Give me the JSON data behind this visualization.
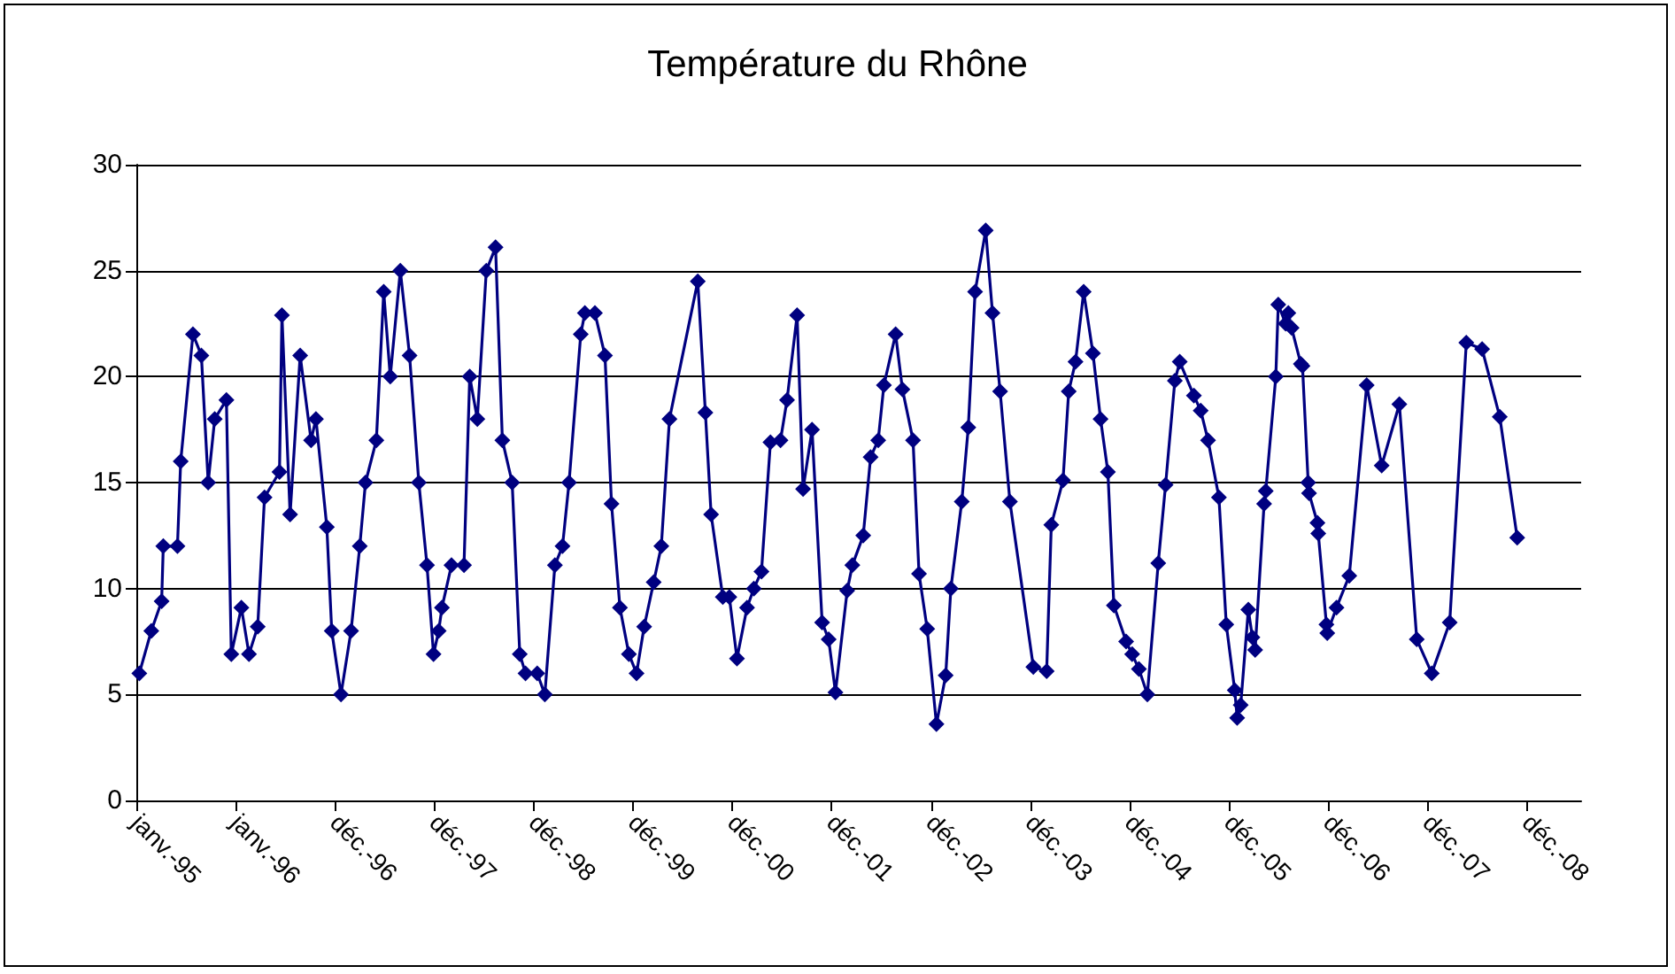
{
  "chart_data": {
    "type": "line",
    "title": "Température du Rhône",
    "color": "#000080",
    "marker": "diamond",
    "line_style": "solid",
    "grid": "y",
    "xlim": [
      "1995-01-01",
      "2009-07-15"
    ],
    "xticks": [
      {
        "value": "1995-01-01",
        "label": "janv.-95"
      },
      {
        "value": "1996-01-01",
        "label": "janv.-96"
      },
      {
        "value": "1996-12-31",
        "label": "déc.-96"
      },
      {
        "value": "1997-12-31",
        "label": "déc.-97"
      },
      {
        "value": "1998-12-31",
        "label": "déc.-98"
      },
      {
        "value": "1999-12-31",
        "label": "déc.-99"
      },
      {
        "value": "2000-12-30",
        "label": "déc.-00"
      },
      {
        "value": "2001-12-30",
        "label": "déc.-01"
      },
      {
        "value": "2002-12-30",
        "label": "déc.-02"
      },
      {
        "value": "2003-12-30",
        "label": "déc.-03"
      },
      {
        "value": "2004-12-29",
        "label": "déc.-04"
      },
      {
        "value": "2005-12-29",
        "label": "déc.-05"
      },
      {
        "value": "2006-12-29",
        "label": "déc.-06"
      },
      {
        "value": "2007-12-29",
        "label": "déc.-07"
      },
      {
        "value": "2008-12-28",
        "label": "déc.-08"
      }
    ],
    "ylim": [
      0,
      30
    ],
    "yticks": [
      0,
      5,
      10,
      15,
      20,
      25,
      30
    ],
    "x": [
      "1995-01-12",
      "1995-02-25",
      "1995-04-04",
      "1995-04-10",
      "1995-06-01",
      "1995-06-13",
      "1995-07-28",
      "1995-08-28",
      "1995-09-22",
      "1995-10-16",
      "1995-11-28",
      "1995-12-16",
      "1996-01-22",
      "1996-02-19",
      "1996-03-22",
      "1996-04-16",
      "1996-06-10",
      "1996-06-19",
      "1996-07-19",
      "1996-08-25",
      "1996-10-04",
      "1996-10-22",
      "1996-12-01",
      "1996-12-19",
      "1997-01-22",
      "1997-02-28",
      "1997-04-01",
      "1997-04-22",
      "1997-06-01",
      "1997-06-28",
      "1997-07-22",
      "1997-08-28",
      "1997-10-01",
      "1997-11-04",
      "1997-12-04",
      "1997-12-28",
      "1998-01-16",
      "1998-01-28",
      "1998-03-04",
      "1998-04-19",
      "1998-05-10",
      "1998-06-07",
      "1998-07-10",
      "1998-08-13",
      "1998-09-07",
      "1998-10-13",
      "1998-11-10",
      "1998-12-01",
      "1999-01-13",
      "1999-02-10",
      "1999-03-19",
      "1999-04-16",
      "1999-05-10",
      "1999-06-22",
      "1999-07-07",
      "1999-08-13",
      "1999-09-19",
      "1999-10-13",
      "1999-11-13",
      "1999-12-16",
      "2000-01-13",
      "2000-02-10",
      "2000-03-16",
      "2000-04-13",
      "2000-05-13",
      "2000-08-25",
      "2000-09-22",
      "2000-10-13",
      "2000-11-25",
      "2000-12-19",
      "2001-01-16",
      "2001-02-22",
      "2001-03-19",
      "2001-04-16",
      "2001-05-19",
      "2001-06-25",
      "2001-07-19",
      "2001-08-25",
      "2001-09-16",
      "2001-10-19",
      "2001-11-25",
      "2001-12-19",
      "2002-01-13",
      "2002-02-25",
      "2002-03-16",
      "2002-04-25",
      "2002-05-22",
      "2002-06-19",
      "2002-07-10",
      "2002-08-22",
      "2002-09-16",
      "2002-10-25",
      "2002-11-16",
      "2002-12-16",
      "2003-01-19",
      "2003-02-22",
      "2003-03-13",
      "2003-04-22",
      "2003-05-16",
      "2003-06-10",
      "2003-07-19",
      "2003-08-13",
      "2003-09-10",
      "2003-10-16",
      "2004-01-10",
      "2004-02-28",
      "2004-03-16",
      "2004-04-28",
      "2004-05-19",
      "2004-06-13",
      "2004-07-13",
      "2004-08-16",
      "2004-09-13",
      "2004-10-10",
      "2004-11-01",
      "2004-12-16",
      "2005-01-07",
      "2005-02-01",
      "2005-03-04",
      "2005-04-13",
      "2005-05-10",
      "2005-06-13",
      "2005-07-01",
      "2005-08-22",
      "2005-09-16",
      "2005-10-13",
      "2005-11-22",
      "2005-12-19",
      "2006-01-19",
      "2006-01-28",
      "2006-02-10",
      "2006-03-10",
      "2006-03-25",
      "2006-04-04",
      "2006-05-07",
      "2006-05-13",
      "2006-06-19",
      "2006-06-28",
      "2006-07-25",
      "2006-08-04",
      "2006-08-16",
      "2006-09-19",
      "2006-09-25",
      "2006-10-16",
      "2006-10-19",
      "2006-11-19",
      "2006-11-22",
      "2006-12-22",
      "2006-12-25",
      "2007-01-28",
      "2007-03-16",
      "2007-05-19",
      "2007-07-13",
      "2007-09-16",
      "2007-11-19",
      "2008-01-13",
      "2008-03-19",
      "2008-05-19",
      "2008-07-16",
      "2008-09-19",
      "2008-11-22"
    ],
    "values": [
      6,
      8,
      9.4,
      12,
      12,
      16,
      22,
      21,
      15,
      18,
      18.9,
      6.9,
      9.1,
      6.9,
      8.2,
      14.3,
      15.5,
      22.9,
      13.5,
      21,
      17,
      18,
      12.9,
      8,
      5,
      8,
      12,
      15,
      17,
      24,
      20,
      25,
      21,
      15,
      11.1,
      6.9,
      8,
      9.1,
      11.1,
      11.1,
      20,
      18,
      25,
      26.1,
      17,
      15,
      6.9,
      6,
      6,
      5,
      11.1,
      12,
      15,
      22,
      23,
      23,
      21,
      14,
      9.1,
      6.9,
      6,
      8.2,
      10.3,
      12,
      18,
      24.5,
      18.3,
      13.5,
      9.6,
      9.6,
      6.7,
      9.1,
      10,
      10.8,
      16.9,
      17,
      18.9,
      22.9,
      14.7,
      17.5,
      8.4,
      7.6,
      5.1,
      9.9,
      11.1,
      12.5,
      16.2,
      17,
      19.6,
      22,
      19.4,
      17,
      10.7,
      8.1,
      3.6,
      5.9,
      10,
      14.1,
      17.6,
      24,
      26.9,
      23,
      19.3,
      14.1,
      6.3,
      6.1,
      13,
      15.1,
      19.3,
      20.7,
      24,
      21.1,
      18,
      15.5,
      9.2,
      7.5,
      6.9,
      6.2,
      5,
      11.2,
      14.9,
      19.8,
      20.7,
      19.1,
      18.4,
      17,
      14.3,
      8.3,
      5.2,
      3.9,
      4.5,
      9,
      7.7,
      7.1,
      14,
      14.6,
      20,
      23.4,
      22.5,
      23,
      22.3,
      20.6,
      20.5,
      15,
      14.5,
      13.1,
      12.6,
      8.3,
      7.9,
      9.1,
      10.6,
      19.6,
      15.8,
      18.7,
      7.6,
      6,
      8.4,
      21.6,
      21.3,
      18.1,
      12.4
    ]
  }
}
